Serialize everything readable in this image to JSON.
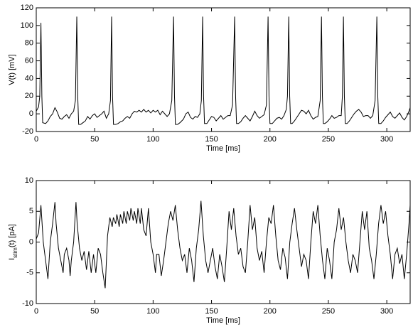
{
  "chart_data": [
    {
      "type": "line",
      "xlabel": "Time [ms]",
      "ylabel": "V(t) [mV]",
      "xlim": [
        0,
        320
      ],
      "xticks": [
        0,
        50,
        100,
        150,
        200,
        250,
        300
      ],
      "ylim": [
        -20,
        120
      ],
      "yticks": [
        -20,
        0,
        20,
        40,
        60,
        80,
        100,
        120
      ],
      "x": [
        0,
        2,
        3,
        4,
        4.8,
        5.5,
        8,
        10,
        12,
        14,
        16,
        18,
        20,
        22,
        24,
        26,
        28,
        30,
        32,
        33.5,
        34.7,
        35.5,
        36.3,
        38,
        40,
        42,
        44,
        46,
        48,
        50,
        52,
        54,
        56,
        58,
        60,
        62,
        63.5,
        64.5,
        65.3,
        66.1,
        68,
        70,
        72,
        74,
        76,
        78,
        80,
        82,
        84,
        86,
        88,
        90,
        92,
        94,
        96,
        98,
        100,
        102,
        104,
        106,
        108,
        110,
        112,
        114,
        116,
        117.5,
        118.3,
        119.1,
        121,
        123,
        126,
        128,
        130,
        132,
        134,
        136,
        138,
        140,
        141.3,
        142.4,
        143.2,
        144,
        146,
        148,
        150,
        152,
        154,
        156,
        158,
        160,
        162,
        164,
        166,
        168,
        169.8,
        170.6,
        171.4,
        173,
        175,
        177,
        179,
        181,
        183,
        185,
        187,
        189,
        191,
        193,
        195,
        197,
        198.4,
        199.2,
        200,
        202,
        204,
        206,
        208,
        210,
        212,
        214,
        215,
        216.1,
        216.9,
        217.7,
        219,
        221,
        223,
        225,
        227,
        229,
        231,
        233,
        235,
        237,
        239,
        241,
        243,
        244.1,
        244.9,
        245.7,
        247,
        249,
        251,
        253,
        255,
        257,
        259,
        261,
        262,
        262.9,
        263.7,
        264.5,
        266,
        268,
        270,
        272,
        274,
        276,
        278,
        280,
        282,
        284,
        286,
        288,
        290,
        291.5,
        292.3,
        293.1,
        295,
        297,
        299,
        301,
        303,
        305,
        307,
        309,
        311,
        313,
        315,
        317,
        319,
        320
      ],
      "series": [
        {
          "color": "#000000",
          "values": [
            3,
            8,
            20,
            103,
            20,
            -10,
            -11,
            -8,
            -3,
            0,
            7,
            2,
            -5,
            -6,
            -3,
            -1,
            -5,
            0,
            3,
            15,
            110,
            20,
            -12,
            -12,
            -10,
            -8,
            -3,
            -6,
            -2,
            0,
            -4,
            -2,
            0,
            3,
            -5,
            0,
            15,
            110,
            20,
            -12,
            -12,
            -11,
            -9,
            -8,
            -5,
            -3,
            -5,
            0,
            3,
            2,
            4,
            2,
            5,
            2,
            4,
            1,
            4,
            2,
            4,
            -1,
            3,
            0,
            -3,
            0,
            15,
            110,
            20,
            -12,
            -12,
            -10,
            -6,
            0,
            2,
            -4,
            -6,
            -3,
            -4,
            0,
            15,
            110,
            20,
            -11,
            -11,
            -7,
            -3,
            -4,
            -8,
            -5,
            -2,
            -6,
            -4,
            -2,
            -2,
            10,
            110,
            20,
            -11,
            -11,
            -9,
            -5,
            -2,
            -5,
            -8,
            -3,
            3,
            -2,
            -5,
            -3,
            -1,
            10,
            110,
            20,
            -11,
            -11,
            -8,
            -5,
            -4,
            -6,
            -2,
            5,
            20,
            110,
            20,
            -11,
            -11,
            -8,
            -4,
            0,
            4,
            3,
            0,
            4,
            -2,
            -6,
            -4,
            -3,
            15,
            110,
            20,
            -11,
            -11,
            -9,
            -6,
            -2,
            -5,
            -4,
            -2,
            -2,
            20,
            110,
            20,
            -11,
            -11,
            -8,
            -4,
            0,
            3,
            5,
            2,
            -3,
            -2,
            -2,
            -5,
            -2,
            15,
            110,
            20,
            -11,
            -11,
            -8,
            -4,
            -1,
            2,
            -3,
            -5,
            -2,
            1,
            -4,
            -7,
            -3,
            3,
            7
          ]
        }
      ]
    },
    {
      "type": "line",
      "xlabel": "Time [ms]",
      "ylabel": [
        "I",
        "stim",
        "(t) [pA]"
      ],
      "xlim": [
        0,
        320
      ],
      "xticks": [
        0,
        50,
        100,
        150,
        200,
        250,
        300
      ],
      "ylim": [
        -10,
        10
      ],
      "yticks": [
        -10,
        -5,
        0,
        5,
        10
      ],
      "x": [
        0,
        2,
        4,
        5,
        6,
        8,
        10,
        12,
        14,
        16,
        17,
        19,
        21,
        23,
        24,
        26,
        28,
        29,
        30,
        32,
        34,
        35,
        37,
        39,
        41,
        43,
        45,
        47,
        49,
        51,
        53,
        55,
        57,
        59,
        61,
        63,
        65,
        66,
        68,
        69,
        71,
        72,
        74,
        75,
        77,
        78,
        80,
        81,
        83,
        84,
        86,
        87,
        89,
        90,
        92,
        94,
        96,
        98,
        100,
        102,
        103,
        105,
        107,
        109,
        111,
        113,
        115,
        117,
        119,
        121,
        123,
        125,
        127,
        129,
        131,
        133,
        135,
        137,
        139,
        141,
        143,
        145,
        147,
        149,
        151,
        153,
        155,
        157,
        159,
        161,
        163,
        165,
        167,
        169,
        171,
        173,
        175,
        177,
        179,
        181,
        183,
        185,
        187,
        189,
        191,
        193,
        195,
        197,
        199,
        201,
        203,
        205,
        207,
        209,
        211,
        213,
        215,
        217,
        219,
        221,
        223,
        225,
        227,
        229,
        231,
        233,
        235,
        237,
        239,
        241,
        243,
        245,
        247,
        249,
        251,
        253,
        255,
        257,
        259,
        261,
        263,
        265,
        267,
        269,
        271,
        273,
        275,
        277,
        279,
        281,
        283,
        285,
        287,
        289,
        291,
        293,
        295,
        297,
        299,
        301,
        303,
        305,
        307,
        309,
        311,
        313,
        315,
        317,
        319,
        320
      ],
      "series": [
        {
          "color": "#000000",
          "values": [
            0.5,
            1.5,
            6,
            3,
            0,
            -3,
            -6,
            0,
            3,
            6.5,
            3,
            -1,
            -3,
            -5,
            -2,
            -1,
            -3,
            -5.5,
            -3,
            0,
            6.5,
            3,
            -1,
            -3,
            -1.5,
            -4.5,
            -1.5,
            -5,
            -2,
            -5,
            -1,
            -2,
            -5,
            -7.5,
            1,
            4,
            2.5,
            4,
            3,
            4.5,
            2.5,
            4.5,
            3,
            5,
            3,
            5,
            3.5,
            5.5,
            3.5,
            5,
            3,
            5.5,
            3,
            5.5,
            2,
            1,
            5.5,
            0,
            -2,
            -5,
            -2,
            -2,
            -5.5,
            -3,
            0,
            3,
            5,
            3.5,
            6,
            2,
            -1,
            -3,
            -2,
            -5,
            -1,
            -3,
            -6.5,
            -1,
            2,
            6.7,
            1,
            -3,
            -5,
            -3,
            -1,
            -4,
            -6,
            -2,
            -4,
            -6.5,
            -1,
            5,
            2,
            5.5,
            1,
            -2,
            -1,
            -4,
            -5,
            0,
            6,
            2,
            4,
            -1,
            -3,
            -1.5,
            -5,
            0,
            4,
            3,
            6,
            1,
            -3,
            -4.5,
            -1,
            -2.5,
            -6,
            0,
            3,
            5.5,
            2,
            -1,
            -4,
            -2,
            -3,
            -6,
            0,
            5,
            3,
            6,
            1,
            -3,
            -6,
            -1,
            -3,
            -6,
            0,
            2,
            5.5,
            2,
            4,
            0,
            -3,
            -5,
            -2,
            -3,
            -5,
            0,
            5,
            2,
            5,
            -1,
            -3,
            -6,
            -2,
            3,
            6,
            3,
            5,
            1,
            -2,
            -6,
            -2,
            -1,
            -3.5,
            -2,
            -6,
            -2,
            3,
            6
          ]
        }
      ]
    }
  ]
}
